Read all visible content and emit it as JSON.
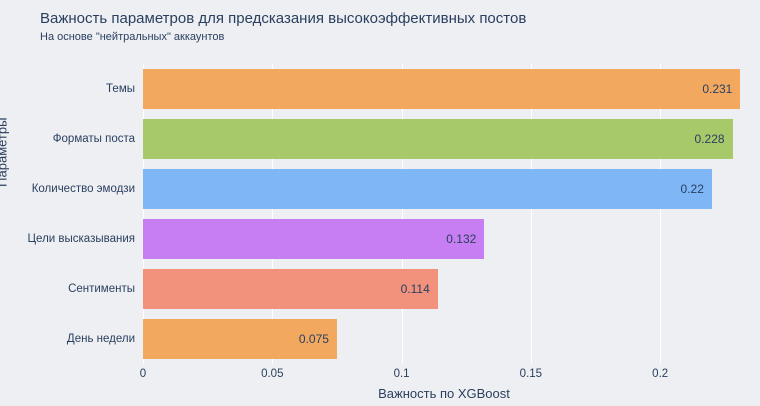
{
  "title": "Важность параметров для предсказания высокоэффективных постов",
  "subtitle": "На основе \"нейтральных\" аккаунтов",
  "chart_data": {
    "type": "bar",
    "orientation": "horizontal",
    "title": "Важность параметров для предсказания высокоэффективных постов",
    "subtitle": "На основе \"нейтральных\" аккаунтов",
    "categories": [
      "Темы",
      "Форматы поста",
      "Количество эмодзи",
      "Цели высказывания",
      "Сентименты",
      "День недели"
    ],
    "values": [
      0.231,
      0.228,
      0.22,
      0.132,
      0.114,
      0.075
    ],
    "value_labels": [
      "0.231",
      "0.228",
      "0.22",
      "0.132",
      "0.114",
      "0.075"
    ],
    "bar_colors": [
      "#f2a95f",
      "#a8c96a",
      "#7fb6f5",
      "#c77ef2",
      "#f2917c",
      "#f2a95f"
    ],
    "xlabel": "Важность по XGBoost",
    "ylabel": "Параметры",
    "xlim": [
      0,
      0.2328
    ],
    "xticks": [
      0,
      0.05,
      0.1,
      0.15,
      0.2
    ],
    "xtick_labels": [
      "0",
      "0.05",
      "0.1",
      "0.15",
      "0.2"
    ],
    "grid": true,
    "legend": "none"
  },
  "colors": {
    "background": "#edeff2",
    "grid": "#ffffff",
    "text": "#2a3f5f"
  }
}
